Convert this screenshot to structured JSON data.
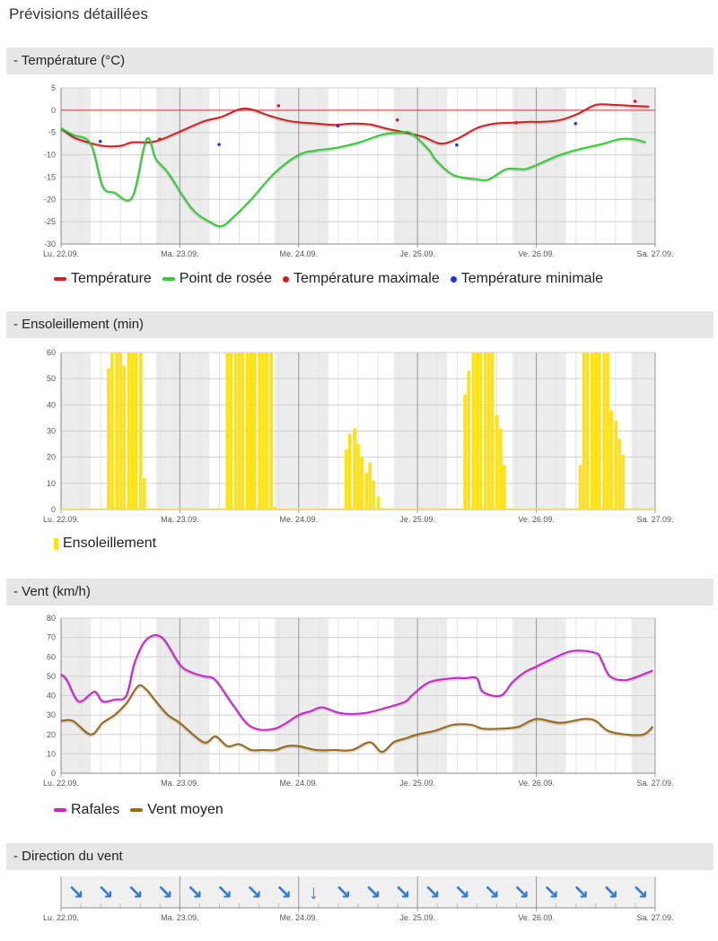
{
  "page": {
    "title": "Prévisions détaillées"
  },
  "sections": {
    "temperature": {
      "header": "- Température (°C)"
    },
    "sunshine": {
      "header": "- Ensoleillement (min)"
    },
    "wind": {
      "header": "- Vent (km/h)"
    },
    "direction": {
      "header": "- Direction du vent"
    }
  },
  "days": [
    "Lu. 22.09.",
    "Ma. 23.09.",
    "Me. 24.09.",
    "Je. 25.09.",
    "Ve. 26.09.",
    "Sa. 27.09."
  ],
  "colors": {
    "temperature": "#cc2222",
    "dewpoint": "#33cc33",
    "tmax": "#cc2222",
    "tmin": "#2233dd",
    "sunshine": "#ffe11a",
    "gusts": "#cc22cc",
    "wind_mean": "#996611",
    "arrow": "#2f7bd6"
  },
  "chart_data": [
    {
      "type": "line",
      "title": "- Température (°C)",
      "x_unit": "days",
      "ylim": [
        -30,
        5
      ],
      "yticks": [
        5,
        0,
        -5,
        -10,
        -15,
        -20,
        -25,
        -30
      ],
      "grid": true,
      "legend_position": "bottom",
      "legend": [
        "Température",
        "Point de rosée",
        "Température maximale",
        "Température minimale"
      ],
      "series": [
        {
          "name": "Température",
          "kind": "line",
          "x": [
            0,
            0.1,
            0.2,
            0.35,
            0.5,
            0.6,
            0.75,
            0.85,
            1,
            1.2,
            1.35,
            1.5,
            1.6,
            1.75,
            1.9,
            2,
            2.15,
            2.3,
            2.45,
            2.6,
            2.75,
            2.9,
            3.05,
            3.2,
            3.35,
            3.5,
            3.65,
            3.8,
            3.95,
            4.05,
            4.2,
            4.35,
            4.5,
            4.65,
            4.8,
            4.95
          ],
          "y": [
            -4,
            -6,
            -7,
            -8,
            -8,
            -7.2,
            -7.2,
            -6.5,
            -4.8,
            -2.5,
            -1.5,
            0.2,
            0.2,
            -1.2,
            -2.3,
            -2.7,
            -3,
            -3.3,
            -3,
            -3.2,
            -4.2,
            -5,
            -6,
            -7.5,
            -6.2,
            -4,
            -3,
            -2.8,
            -2.6,
            -2.6,
            -2.2,
            -0.8,
            1.2,
            1.2,
            1,
            0.8
          ]
        },
        {
          "name": "Point de rosée",
          "kind": "line",
          "x": [
            0,
            0.1,
            0.25,
            0.35,
            0.45,
            0.6,
            0.72,
            0.8,
            0.9,
            1.1,
            1.25,
            1.35,
            1.45,
            1.6,
            1.8,
            2,
            2.15,
            2.3,
            2.5,
            2.7,
            2.85,
            2.95,
            3.1,
            3.15,
            3.3,
            3.5,
            3.6,
            3.75,
            3.9,
            4,
            4.2,
            4.4,
            4.55,
            4.7,
            4.82,
            4.92
          ],
          "y": [
            -4,
            -5.5,
            -7.5,
            -17,
            -18.5,
            -19.5,
            -6.5,
            -11,
            -14,
            -22,
            -25,
            -26,
            -24,
            -20,
            -14,
            -10,
            -9,
            -8.5,
            -7.3,
            -5.5,
            -5,
            -5.2,
            -9,
            -11,
            -14.5,
            -15.5,
            -15.5,
            -13.2,
            -13.2,
            -12.3,
            -10,
            -8.5,
            -7.6,
            -6.5,
            -6.5,
            -7.2
          ]
        },
        {
          "name": "Température maximale",
          "kind": "scatter",
          "x": [
            0.83,
            1.83,
            2.83,
            3.83,
            4.83
          ],
          "y": [
            -6.5,
            1,
            -2.2,
            -2.8,
            2
          ]
        },
        {
          "name": "Température minimale",
          "kind": "scatter",
          "x": [
            0.33,
            1.33,
            2.33,
            3.33,
            4.33
          ],
          "y": [
            -7,
            -7.7,
            -3.5,
            -7.8,
            -3
          ]
        }
      ]
    },
    {
      "type": "bar",
      "title": "- Ensoleillement (min)",
      "x_unit": "days",
      "ylim": [
        0,
        60
      ],
      "yticks": [
        60,
        50,
        40,
        30,
        20,
        10,
        0
      ],
      "grid": true,
      "legend_position": "bottom",
      "legend": [
        "Ensoleillement"
      ],
      "series": [
        {
          "name": "Ensoleillement",
          "x": [
            0.4,
            0.43,
            0.47,
            0.5,
            0.53,
            0.57,
            0.6,
            0.63,
            0.67,
            0.7,
            0.73,
            0.77,
            1.4,
            1.43,
            1.47,
            1.5,
            1.53,
            1.57,
            1.6,
            1.63,
            1.67,
            1.7,
            1.73,
            1.77,
            1.8,
            2.4,
            2.43,
            2.47,
            2.5,
            2.53,
            2.57,
            2.6,
            2.63,
            2.67,
            2.7,
            2.73,
            3.4,
            3.43,
            3.47,
            3.5,
            3.53,
            3.57,
            3.6,
            3.63,
            3.67,
            3.7,
            3.73,
            4.37,
            4.4,
            4.43,
            4.47,
            4.5,
            4.53,
            4.57,
            4.6,
            4.63,
            4.67,
            4.7,
            4.73
          ],
          "y": [
            54,
            60,
            60,
            60,
            55,
            60,
            60,
            60,
            60,
            12,
            0,
            0,
            60,
            60,
            60,
            60,
            60,
            60,
            60,
            60,
            60,
            60,
            60,
            60,
            1,
            23,
            29,
            31,
            25,
            20,
            14,
            18,
            11,
            5,
            0,
            0,
            44,
            53,
            60,
            60,
            60,
            60,
            60,
            60,
            36,
            31,
            17,
            17,
            60,
            60,
            60,
            60,
            60,
            60,
            60,
            38,
            34,
            27,
            21
          ]
        }
      ]
    },
    {
      "type": "line",
      "title": "- Vent (km/h)",
      "x_unit": "days",
      "ylim": [
        0,
        80
      ],
      "yticks": [
        80,
        70,
        60,
        50,
        40,
        30,
        20,
        10,
        0
      ],
      "grid": true,
      "legend_position": "bottom",
      "legend": [
        "Rafales",
        "Vent moyen"
      ],
      "series": [
        {
          "name": "Rafales",
          "x": [
            0,
            0.05,
            0.15,
            0.28,
            0.35,
            0.45,
            0.55,
            0.62,
            0.72,
            0.85,
            1,
            1.1,
            1.2,
            1.3,
            1.45,
            1.6,
            1.8,
            2,
            2.1,
            2.2,
            2.35,
            2.55,
            2.75,
            2.9,
            2.95,
            3.1,
            3.3,
            3.4,
            3.5,
            3.55,
            3.7,
            3.8,
            3.9,
            4,
            4.1,
            4.3,
            4.5,
            4.55,
            4.62,
            4.75,
            4.9,
            4.98
          ],
          "y": [
            51,
            48,
            37,
            42,
            37,
            38,
            40,
            57,
            69,
            70,
            56,
            52,
            50,
            48,
            35,
            24,
            23,
            30,
            32,
            34,
            31,
            31,
            34,
            37,
            40,
            47,
            49,
            49,
            49,
            42,
            40,
            47,
            52,
            55,
            58,
            63,
            62,
            58,
            50,
            48,
            51,
            53
          ]
        },
        {
          "name": "Vent moyen",
          "x": [
            0,
            0.1,
            0.25,
            0.35,
            0.45,
            0.55,
            0.65,
            0.72,
            0.8,
            0.9,
            1,
            1.2,
            1.3,
            1.4,
            1.5,
            1.6,
            1.7,
            1.8,
            1.9,
            2,
            2.15,
            2.3,
            2.45,
            2.6,
            2.7,
            2.8,
            2.9,
            3,
            3.15,
            3.3,
            3.45,
            3.55,
            3.7,
            3.85,
            4,
            4.2,
            4.4,
            4.5,
            4.6,
            4.75,
            4.9,
            4.98
          ],
          "y": [
            27,
            27,
            20,
            26,
            30,
            36,
            45,
            43,
            37,
            30,
            26,
            16,
            19,
            14,
            15,
            12,
            12,
            12,
            14,
            14,
            12,
            12,
            12,
            16,
            11,
            16,
            18,
            20,
            22,
            25,
            25,
            23,
            23,
            24,
            28,
            26,
            28,
            27,
            22,
            20,
            20,
            24
          ]
        }
      ]
    }
  ],
  "direction": {
    "arrows": [
      "↘",
      "↘",
      "↘",
      "↘",
      "↘",
      "↘",
      "↘",
      "↘",
      "↓",
      "↘",
      "↘",
      "↘",
      "↘",
      "↘",
      "↘",
      "↘",
      "↘",
      "↘",
      "↘",
      "↘"
    ],
    "labels": [
      "Lu. 22.09.",
      "Ma. 23.09.",
      "Me. 24.09.",
      "Je. 25.09.",
      "Ve. 26.09.",
      "Sa. 27.09."
    ]
  }
}
